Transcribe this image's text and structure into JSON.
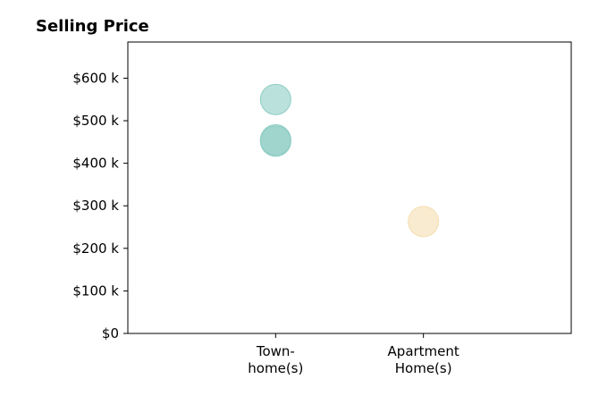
{
  "chart_data": {
    "type": "scatter",
    "title": "Selling Price",
    "xlabel": "",
    "ylabel": "",
    "categories": [
      [
        "Town-",
        "home(s)"
      ],
      [
        "Apartment",
        "Home(s)"
      ]
    ],
    "x_range": [
      -1,
      2
    ],
    "ylim": [
      0,
      685000
    ],
    "y_ticks": [
      {
        "value": 0,
        "label": "$0"
      },
      {
        "value": 100000,
        "label": "$100 k"
      },
      {
        "value": 200000,
        "label": "$200 k"
      },
      {
        "value": 300000,
        "label": "$300 k"
      },
      {
        "value": 400000,
        "label": "$400 k"
      },
      {
        "value": 500000,
        "label": "$500 k"
      },
      {
        "value": 600000,
        "label": "$600 k"
      }
    ],
    "points": [
      {
        "category_index": 0,
        "y": 550000,
        "color": "#8ecdc4"
      },
      {
        "category_index": 0,
        "y": 455000,
        "color": "#8ecdc4"
      },
      {
        "category_index": 0,
        "y": 452000,
        "color": "#8ecdc4"
      },
      {
        "category_index": 1,
        "y": 263000,
        "color": "#f5deb0"
      }
    ],
    "point_opacity": 0.6,
    "grid": false,
    "legend": "none"
  }
}
